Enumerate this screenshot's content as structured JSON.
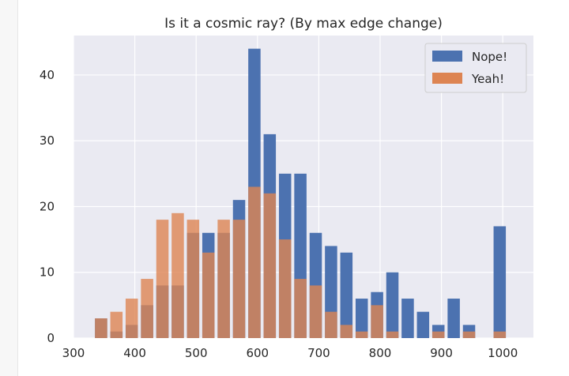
{
  "chart_data": {
    "type": "bar",
    "title": "Is it a cosmic ray? (By max edge change)",
    "xlabel": "",
    "ylabel": "",
    "xlim": [
      300,
      1050
    ],
    "ylim": [
      0,
      46
    ],
    "xticks": [
      300,
      400,
      500,
      600,
      700,
      800,
      900,
      1000
    ],
    "yticks": [
      0,
      10,
      20,
      30,
      40
    ],
    "grid": true,
    "legend_position": "top-right",
    "bar_width": 20,
    "series": [
      {
        "name": "Nope!",
        "color": "#4c72b0",
        "x": [
          345,
          370,
          395,
          420,
          445,
          470,
          495,
          520,
          545,
          570,
          595,
          620,
          645,
          670,
          695,
          720,
          745,
          770,
          795,
          820,
          845,
          870,
          895,
          920,
          945,
          970,
          995
        ],
        "values": [
          3,
          1,
          2,
          5,
          8,
          8,
          16,
          16,
          16,
          21,
          44,
          31,
          25,
          25,
          16,
          14,
          13,
          6,
          7,
          10,
          6,
          4,
          2,
          6,
          2,
          0,
          17
        ]
      },
      {
        "name": "Yeah!",
        "color": "#dd8452",
        "x": [
          345,
          370,
          395,
          420,
          445,
          470,
          495,
          520,
          545,
          570,
          595,
          620,
          645,
          670,
          695,
          720,
          745,
          770,
          795,
          820,
          845,
          870,
          895,
          920,
          945,
          970,
          995
        ],
        "values": [
          3,
          4,
          6,
          9,
          18,
          19,
          18,
          13,
          18,
          18,
          23,
          22,
          15,
          9,
          8,
          4,
          2,
          1,
          5,
          1,
          0,
          0,
          1,
          0,
          1,
          0,
          1
        ]
      }
    ]
  }
}
